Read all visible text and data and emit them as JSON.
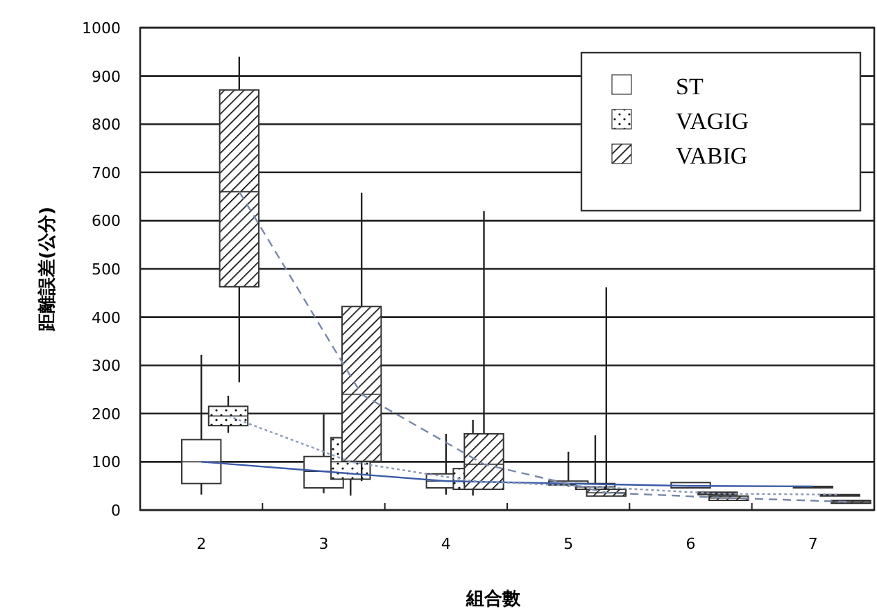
{
  "chart_data": {
    "type": "box",
    "xlabel": "組合數",
    "ylabel": "距離誤差(公分)",
    "categories": [
      "2",
      "3",
      "4",
      "5",
      "6",
      "7"
    ],
    "ylim": [
      0,
      1000
    ],
    "yticks": [
      0,
      100,
      200,
      300,
      400,
      500,
      600,
      700,
      800,
      900,
      1000
    ],
    "grid": "y",
    "legend": "top right",
    "series": [
      {
        "name": "ST",
        "color": "#333333",
        "boxes": [
          {
            "low": 32,
            "q1": 55,
            "median": 100,
            "q3": 146,
            "high": 322
          },
          {
            "low": 35,
            "q1": 46,
            "median": 80,
            "q3": 111,
            "high": 198
          },
          {
            "low": 32,
            "q1": 46,
            "median": 60,
            "q3": 75,
            "high": 158
          },
          {
            "low": 48,
            "q1": 52,
            "median": 55,
            "q3": 60,
            "high": 121
          },
          {
            "low": 46,
            "q1": 46,
            "median": 50,
            "q3": 57,
            "high": 57
          },
          {
            "low": 49,
            "q1": 49,
            "median": 49,
            "q3": 49,
            "high": 49
          }
        ]
      },
      {
        "name": "VAGIG",
        "color": "#333333",
        "boxes": [
          {
            "low": 160,
            "q1": 175,
            "median": 195,
            "q3": 215,
            "high": 237
          },
          {
            "low": 30,
            "q1": 64,
            "median": 100,
            "q3": 150,
            "high": 195
          },
          {
            "low": 30,
            "q1": 43,
            "median": 60,
            "q3": 86,
            "high": 187
          },
          {
            "low": 40,
            "q1": 43,
            "median": 48,
            "q3": 55,
            "high": 155
          },
          {
            "low": 32,
            "q1": 32,
            "median": 34,
            "q3": 37,
            "high": 37
          },
          {
            "low": 32,
            "q1": 32,
            "median": 32,
            "q3": 32,
            "high": 32
          }
        ]
      },
      {
        "name": "VABIG",
        "color": "#333333",
        "boxes": [
          {
            "low": 265,
            "q1": 463,
            "median": 660,
            "q3": 871,
            "high": 940
          },
          {
            "low": 60,
            "q1": 101,
            "median": 240,
            "q3": 422,
            "high": 658
          },
          {
            "low": 43,
            "q1": 43,
            "median": 95,
            "q3": 158,
            "high": 620
          },
          {
            "low": 28,
            "q1": 29,
            "median": 36,
            "q3": 43,
            "high": 462
          },
          {
            "low": 20,
            "q1": 20,
            "median": 25,
            "q3": 29,
            "high": 29
          },
          {
            "low": 14,
            "q1": 14,
            "median": 17,
            "q3": 20,
            "high": 20
          }
        ]
      },
      {
        "type": "line",
        "color": "#3a5aa8",
        "line_style": "solid",
        "values": [
          100,
          80,
          60,
          55,
          50,
          49
        ]
      },
      {
        "type": "line",
        "color": "#8a9ab8",
        "line_style": "dotted",
        "values": [
          195,
          100,
          60,
          48,
          34,
          32
        ]
      },
      {
        "type": "line",
        "color": "#7888a8",
        "line_style": "dashed",
        "values": [
          660,
          240,
          95,
          36,
          25,
          17
        ]
      }
    ]
  }
}
